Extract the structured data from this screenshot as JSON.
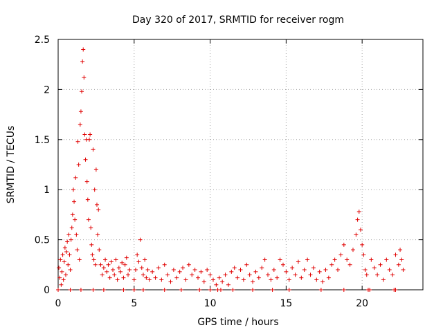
{
  "chart_data": {
    "type": "scatter",
    "title": "Day 320 of 2017, SRMTID for receiver rogm",
    "xlabel": "GPS time / hours",
    "ylabel": "SRMTID / TECUs",
    "xlim": [
      0,
      24
    ],
    "ylim": [
      0,
      2.5
    ],
    "x_ticks": [
      0,
      5,
      10,
      15,
      20
    ],
    "x_tick_labels": [
      "0",
      "5",
      "10",
      "15",
      "20"
    ],
    "y_ticks": [
      0,
      0.5,
      1,
      1.5,
      2,
      2.5
    ],
    "y_tick_labels": [
      "0",
      "0.5",
      "1",
      "1.5",
      "2",
      "2.5"
    ],
    "grid": true,
    "marker": "+",
    "color": "#e00000",
    "series": [
      {
        "name": "SRMTID",
        "points": [
          [
            0.05,
            0.22
          ],
          [
            0.1,
            0.12
          ],
          [
            0.15,
            0.3
          ],
          [
            0.2,
            0.05
          ],
          [
            0.25,
            0.18
          ],
          [
            0.3,
            0.35
          ],
          [
            0.35,
            0.1
          ],
          [
            0.4,
            0.28
          ],
          [
            0.45,
            0.42
          ],
          [
            0.5,
            0.15
          ],
          [
            0.55,
            0.38
          ],
          [
            0.6,
            0.48
          ],
          [
            0.65,
            0.25
          ],
          [
            0.7,
            0.55
          ],
          [
            0.75,
            0.35
          ],
          [
            0.8,
            0.2
          ],
          [
            0.85,
            0.5
          ],
          [
            0.9,
            0.62
          ],
          [
            0.95,
            0.75
          ],
          [
            1.0,
            1.0
          ],
          [
            1.05,
            0.88
          ],
          [
            1.1,
            0.7
          ],
          [
            1.15,
            1.12
          ],
          [
            1.2,
            0.55
          ],
          [
            1.25,
            0.4
          ],
          [
            1.3,
            1.48
          ],
          [
            1.35,
            1.25
          ],
          [
            1.4,
            0.3
          ],
          [
            1.45,
            1.65
          ],
          [
            1.5,
            1.78
          ],
          [
            1.55,
            1.98
          ],
          [
            1.6,
            2.28
          ],
          [
            1.65,
            2.4
          ],
          [
            1.7,
            2.12
          ],
          [
            1.75,
            1.55
          ],
          [
            1.8,
            1.3
          ],
          [
            1.85,
            1.5
          ],
          [
            1.9,
            1.08
          ],
          [
            1.95,
            0.9
          ],
          [
            2.0,
            0.7
          ],
          [
            2.05,
            1.5
          ],
          [
            2.1,
            1.55
          ],
          [
            2.15,
            0.62
          ],
          [
            2.2,
            0.45
          ],
          [
            2.25,
            0.35
          ],
          [
            2.3,
            1.4
          ],
          [
            2.35,
            0.3
          ],
          [
            2.4,
            1.0
          ],
          [
            2.45,
            0.25
          ],
          [
            2.5,
            1.2
          ],
          [
            2.55,
            0.85
          ],
          [
            2.6,
            0.55
          ],
          [
            2.65,
            0.8
          ],
          [
            2.7,
            0.4
          ],
          [
            2.8,
            0.25
          ],
          [
            2.9,
            0.15
          ],
          [
            3.0,
            0.22
          ],
          [
            3.1,
            0.3
          ],
          [
            3.2,
            0.18
          ],
          [
            3.3,
            0.25
          ],
          [
            3.4,
            0.12
          ],
          [
            3.5,
            0.28
          ],
          [
            3.6,
            0.2
          ],
          [
            3.7,
            0.15
          ],
          [
            3.8,
            0.3
          ],
          [
            3.9,
            0.1
          ],
          [
            4.0,
            0.22
          ],
          [
            4.1,
            0.18
          ],
          [
            4.2,
            0.27
          ],
          [
            4.3,
            0.12
          ],
          [
            4.4,
            0.25
          ],
          [
            4.5,
            0.32
          ],
          [
            4.6,
            0.15
          ],
          [
            4.7,
            0.2
          ],
          [
            5.0,
            0.1
          ],
          [
            5.1,
            0.2
          ],
          [
            5.2,
            0.35
          ],
          [
            5.3,
            0.28
          ],
          [
            5.4,
            0.5
          ],
          [
            5.5,
            0.22
          ],
          [
            5.6,
            0.15
          ],
          [
            5.7,
            0.3
          ],
          [
            5.8,
            0.12
          ],
          [
            5.9,
            0.2
          ],
          [
            6.0,
            0.1
          ],
          [
            6.2,
            0.18
          ],
          [
            6.4,
            0.12
          ],
          [
            6.6,
            0.22
          ],
          [
            6.8,
            0.1
          ],
          [
            7.0,
            0.25
          ],
          [
            7.2,
            0.15
          ],
          [
            7.4,
            0.08
          ],
          [
            7.6,
            0.2
          ],
          [
            7.8,
            0.12
          ],
          [
            8.0,
            0.18
          ],
          [
            8.2,
            0.22
          ],
          [
            8.4,
            0.1
          ],
          [
            8.6,
            0.25
          ],
          [
            8.8,
            0.15
          ],
          [
            9.0,
            0.2
          ],
          [
            9.2,
            0.12
          ],
          [
            9.4,
            0.18
          ],
          [
            9.6,
            0.08
          ],
          [
            9.8,
            0.2
          ],
          [
            10.0,
            0.15
          ],
          [
            10.2,
            0.1
          ],
          [
            10.4,
            0.05
          ],
          [
            10.6,
            0.12
          ],
          [
            10.8,
            0.08
          ],
          [
            11.0,
            0.15
          ],
          [
            11.2,
            0.05
          ],
          [
            11.4,
            0.18
          ],
          [
            11.6,
            0.22
          ],
          [
            11.8,
            0.12
          ],
          [
            12.0,
            0.2
          ],
          [
            12.2,
            0.1
          ],
          [
            12.4,
            0.25
          ],
          [
            12.6,
            0.15
          ],
          [
            12.8,
            0.08
          ],
          [
            13.0,
            0.18
          ],
          [
            13.2,
            0.12
          ],
          [
            13.4,
            0.22
          ],
          [
            13.6,
            0.3
          ],
          [
            13.8,
            0.15
          ],
          [
            14.0,
            0.1
          ],
          [
            14.2,
            0.2
          ],
          [
            14.4,
            0.12
          ],
          [
            14.6,
            0.3
          ],
          [
            14.8,
            0.25
          ],
          [
            15.0,
            0.18
          ],
          [
            15.2,
            0.1
          ],
          [
            15.4,
            0.22
          ],
          [
            15.6,
            0.15
          ],
          [
            15.8,
            0.28
          ],
          [
            16.0,
            0.12
          ],
          [
            16.2,
            0.2
          ],
          [
            16.4,
            0.3
          ],
          [
            16.6,
            0.15
          ],
          [
            16.8,
            0.22
          ],
          [
            17.0,
            0.1
          ],
          [
            17.2,
            0.18
          ],
          [
            17.4,
            0.08
          ],
          [
            17.6,
            0.2
          ],
          [
            17.8,
            0.12
          ],
          [
            18.0,
            0.25
          ],
          [
            18.2,
            0.3
          ],
          [
            18.4,
            0.2
          ],
          [
            18.6,
            0.35
          ],
          [
            18.8,
            0.45
          ],
          [
            19.0,
            0.3
          ],
          [
            19.2,
            0.25
          ],
          [
            19.4,
            0.4
          ],
          [
            19.6,
            0.55
          ],
          [
            19.7,
            0.7
          ],
          [
            19.8,
            0.78
          ],
          [
            19.9,
            0.6
          ],
          [
            20.0,
            0.45
          ],
          [
            20.1,
            0.35
          ],
          [
            20.2,
            0.2
          ],
          [
            20.3,
            0.15
          ],
          [
            20.6,
            0.3
          ],
          [
            20.8,
            0.22
          ],
          [
            21.0,
            0.15
          ],
          [
            21.2,
            0.25
          ],
          [
            21.4,
            0.1
          ],
          [
            21.6,
            0.3
          ],
          [
            21.8,
            0.2
          ],
          [
            22.0,
            0.15
          ],
          [
            22.2,
            0.35
          ],
          [
            22.4,
            0.25
          ],
          [
            22.5,
            0.4
          ],
          [
            22.6,
            0.3
          ],
          [
            22.7,
            0.2
          ],
          [
            0.0,
            0.0
          ],
          [
            0.8,
            0.0
          ],
          [
            1.5,
            0.0
          ],
          [
            2.3,
            0.0
          ],
          [
            3.0,
            0.0
          ],
          [
            4.3,
            0.0
          ],
          [
            5.0,
            0.0
          ],
          [
            5.6,
            0.0
          ],
          [
            7.0,
            0.0
          ],
          [
            8.1,
            0.0
          ],
          [
            9.3,
            0.0
          ],
          [
            10.0,
            0.0
          ],
          [
            10.5,
            0.0
          ],
          [
            10.7,
            0.0
          ],
          [
            11.5,
            0.0
          ],
          [
            12.8,
            0.0
          ],
          [
            14.1,
            0.0
          ],
          [
            15.2,
            0.0
          ],
          [
            17.3,
            0.0
          ],
          [
            18.8,
            0.0
          ],
          [
            20.4,
            0.0
          ],
          [
            20.5,
            0.0
          ],
          [
            22.1,
            0.0
          ],
          [
            22.2,
            0.0
          ]
        ]
      }
    ]
  }
}
